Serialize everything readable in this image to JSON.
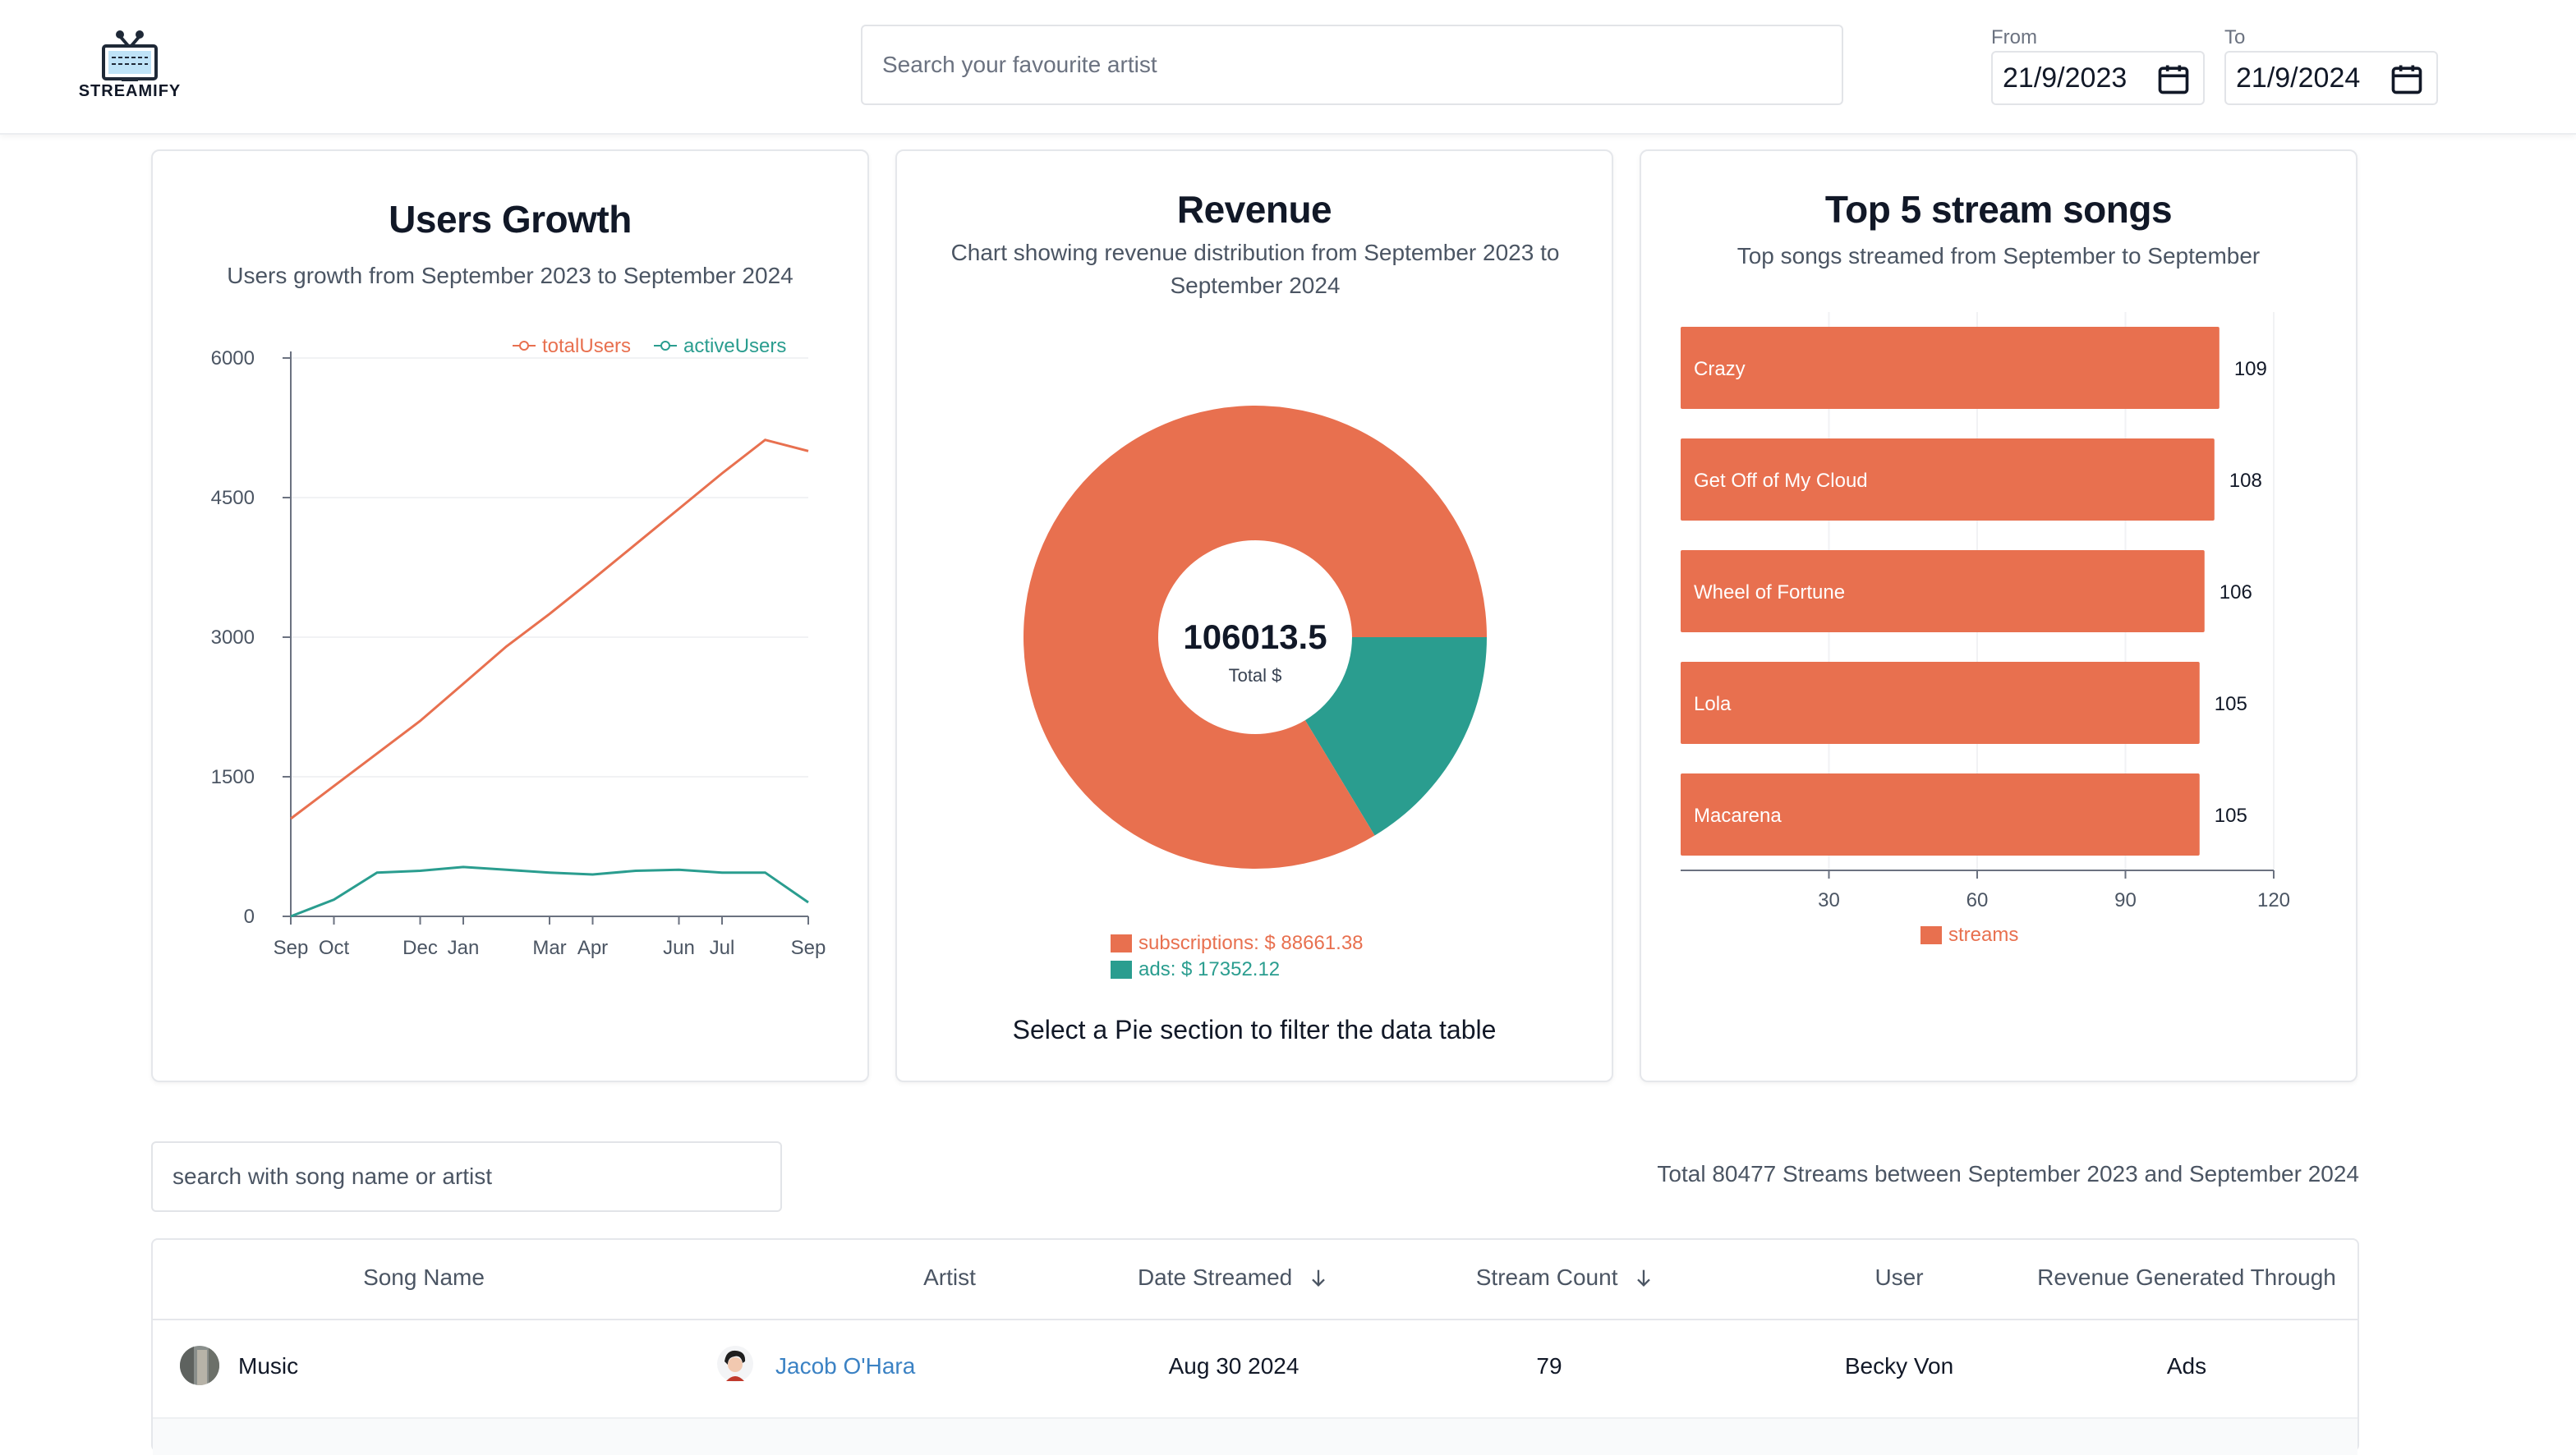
{
  "header": {
    "logo_text": "STREAMIFY",
    "search_placeholder": "Search your favourite artist",
    "from_label": "From",
    "from_value": "21/9/2023",
    "to_label": "To",
    "to_value": "21/9/2024"
  },
  "users_growth": {
    "title": "Users Growth",
    "subtitle": "Users growth from September 2023 to September 2024",
    "legend": [
      "totalUsers",
      "activeUsers"
    ],
    "chart_data": {
      "type": "line",
      "title": "Users Growth",
      "y_ticks": [
        "6000",
        "4500",
        "3000",
        "1500",
        "0"
      ],
      "x_ticks": [
        "Sep",
        "Oct",
        "Dec",
        "Jan",
        "Mar",
        "Apr",
        "Jun",
        "Jul",
        "Sep"
      ],
      "ylim": [
        0,
        6000
      ],
      "x_range": [
        0,
        12
      ],
      "series": [
        {
          "name": "totalUsers",
          "color": "#e8704f",
          "points": [
            [
              0,
              1050
            ],
            [
              1,
              1400
            ],
            [
              2,
              1750
            ],
            [
              3,
              2100
            ],
            [
              4,
              2500
            ],
            [
              5,
              2900
            ],
            [
              6,
              3250
            ],
            [
              7,
              3620
            ],
            [
              8,
              4000
            ],
            [
              9,
              4380
            ],
            [
              10,
              4760
            ],
            [
              11,
              5120
            ],
            [
              12,
              5000
            ]
          ]
        },
        {
          "name": "activeUsers",
          "color": "#2a9d8f",
          "points": [
            [
              0,
              0
            ],
            [
              1,
              180
            ],
            [
              2,
              470
            ],
            [
              3,
              490
            ],
            [
              4,
              530
            ],
            [
              5,
              500
            ],
            [
              6,
              470
            ],
            [
              7,
              450
            ],
            [
              8,
              490
            ],
            [
              9,
              500
            ],
            [
              10,
              470
            ],
            [
              11,
              470
            ],
            [
              12,
              150
            ]
          ]
        }
      ]
    }
  },
  "revenue": {
    "title": "Revenue",
    "subtitle": "Chart showing revenue distribution from September 2023 to September 2024",
    "center_value": "106013.5",
    "center_label": "Total $",
    "legend_subscriptions": "subscriptions: $ 88661.38",
    "legend_ads": "ads: $ 17352.12",
    "footer": "Select a Pie section to filter the data table",
    "chart_data": {
      "type": "pie",
      "total": 106013.5,
      "slices": [
        {
          "label": "subscriptions",
          "value": 88661.38,
          "color": "#e8704f"
        },
        {
          "label": "ads",
          "value": 17352.12,
          "color": "#2a9d8f"
        }
      ]
    }
  },
  "top_songs": {
    "title": "Top 5 stream songs",
    "subtitle": "Top songs streamed from September to September",
    "legend": "streams",
    "chart_data": {
      "type": "bar",
      "orientation": "horizontal",
      "categories": [
        "Crazy",
        "Get Off of My Cloud",
        "Wheel of Fortune",
        "Lola",
        "Macarena"
      ],
      "values": [
        109,
        108,
        106,
        105,
        105
      ],
      "value_labels": [
        "109",
        "108",
        "106",
        "105",
        "105"
      ],
      "x_ticks": [
        "30",
        "60",
        "90",
        "120"
      ],
      "xlim": [
        0,
        120
      ],
      "series": [
        {
          "name": "streams",
          "color": "#e8704f"
        }
      ]
    }
  },
  "table": {
    "search_placeholder": "search with song name or artist",
    "total_text": "Total 80477 Streams between September 2023 and September 2024",
    "columns": [
      "Song Name",
      "Artist",
      "Date Streamed",
      "Stream Count",
      "User",
      "Revenue Generated Through"
    ],
    "rows": [
      {
        "song": "Music",
        "artist": "Jacob O'Hara",
        "date": "Aug 30 2024",
        "count": "79",
        "user": "Becky Von",
        "revenue": "Ads"
      }
    ]
  }
}
